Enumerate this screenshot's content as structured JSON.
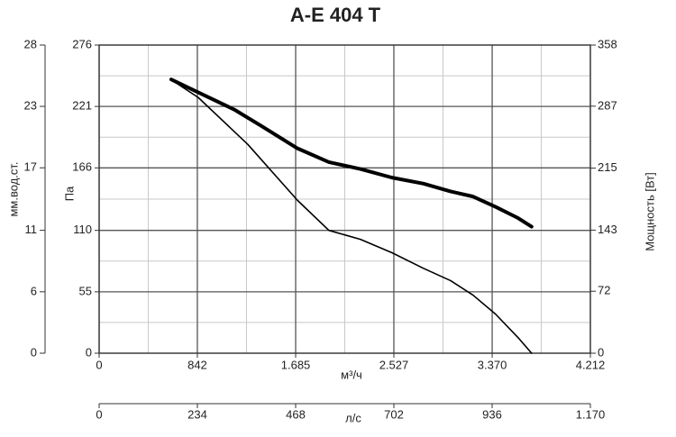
{
  "chart_data": {
    "type": "line",
    "title": "A-E 404 T",
    "xlabel": "м³/ч",
    "x2label": "л/с",
    "ylabel": "Па",
    "y2label": "Мощность [Вт]",
    "y3label": "мм.вод.ст.",
    "xlim": [
      0,
      4212
    ],
    "xticks": [
      0,
      842,
      {
        "value": 1685,
        "label": "1.685"
      },
      {
        "value": 2527,
        "label": "2.527"
      },
      {
        "value": 3370,
        "label": "3.370"
      },
      {
        "value": 4212,
        "label": "4.212"
      }
    ],
    "x2lim": [
      0,
      1170
    ],
    "x2ticks": [
      0,
      234,
      468,
      702,
      936,
      {
        "value": 1170,
        "label": "1.170"
      }
    ],
    "ylim": [
      0,
      276
    ],
    "yticks": [
      0,
      55,
      110,
      166,
      221,
      276
    ],
    "y2lim": [
      0,
      358
    ],
    "y2ticks": [
      0,
      72,
      143,
      215,
      287,
      358
    ],
    "y3lim": [
      0,
      28.14
    ],
    "y3ticks": [
      0,
      {
        "value": 5.61,
        "label": "6"
      },
      {
        "value": 11.22,
        "label": "11"
      },
      {
        "value": 16.93,
        "label": "17"
      },
      {
        "value": 22.54,
        "label": "23"
      },
      {
        "value": 28.14,
        "label": "28"
      }
    ],
    "grid": true,
    "series": [
      {
        "color": "#000000",
        "x": [
          618,
          850,
          1275,
          1700,
          1970,
          2240,
          2511,
          2781,
          3013,
          3206,
          3399,
          3592,
          3708
        ],
        "values": [
          245,
          229,
          187,
          137,
          110,
          102,
          90,
          76,
          65,
          52,
          35,
          14,
          0
        ]
      },
      {
        "color": "#000000",
        "axis": "y2",
        "x": [
          618,
          850,
          1159,
          1391,
          1700,
          1970,
          2240,
          2511,
          2781,
          3013,
          3206,
          3399,
          3592,
          3708
        ],
        "values": [
          318,
          303,
          283,
          264,
          238,
          222,
          214,
          204,
          197,
          188,
          182,
          170,
          157,
          147
        ]
      }
    ]
  }
}
